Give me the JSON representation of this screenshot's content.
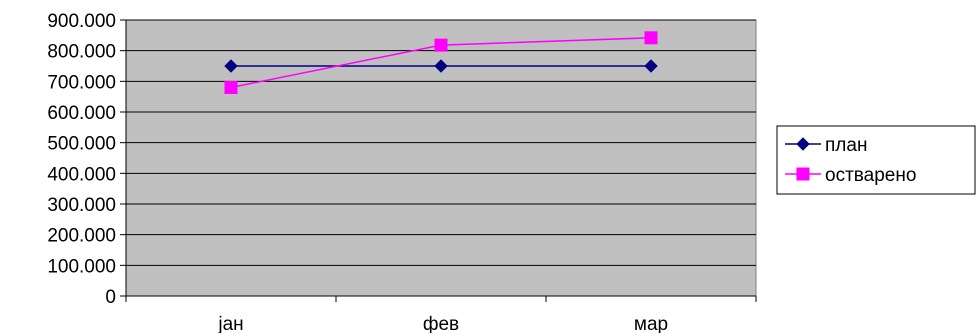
{
  "chart_data": {
    "type": "line",
    "categories": [
      "јан",
      "фев",
      "мар"
    ],
    "series": [
      {
        "name": "план",
        "values": [
          750000,
          750000,
          750000
        ],
        "color": "#000080",
        "marker": "diamond"
      },
      {
        "name": "остварено",
        "values": [
          680000,
          818000,
          842000
        ],
        "color": "#ff00ff",
        "marker": "square"
      }
    ],
    "ylim": [
      0,
      900000
    ],
    "yticks": [
      {
        "value": 0,
        "label": "0"
      },
      {
        "value": 100000,
        "label": "100.000"
      },
      {
        "value": 200000,
        "label": "200.000"
      },
      {
        "value": 300000,
        "label": "300.000"
      },
      {
        "value": 400000,
        "label": "400.000"
      },
      {
        "value": 500000,
        "label": "500.000"
      },
      {
        "value": 600000,
        "label": "600.000"
      },
      {
        "value": 700000,
        "label": "700.000"
      },
      {
        "value": 800000,
        "label": "800.000"
      },
      {
        "value": 900000,
        "label": "900.000"
      }
    ],
    "plot_background": "#c0c0c0",
    "grid": true,
    "legend_position": "right"
  }
}
